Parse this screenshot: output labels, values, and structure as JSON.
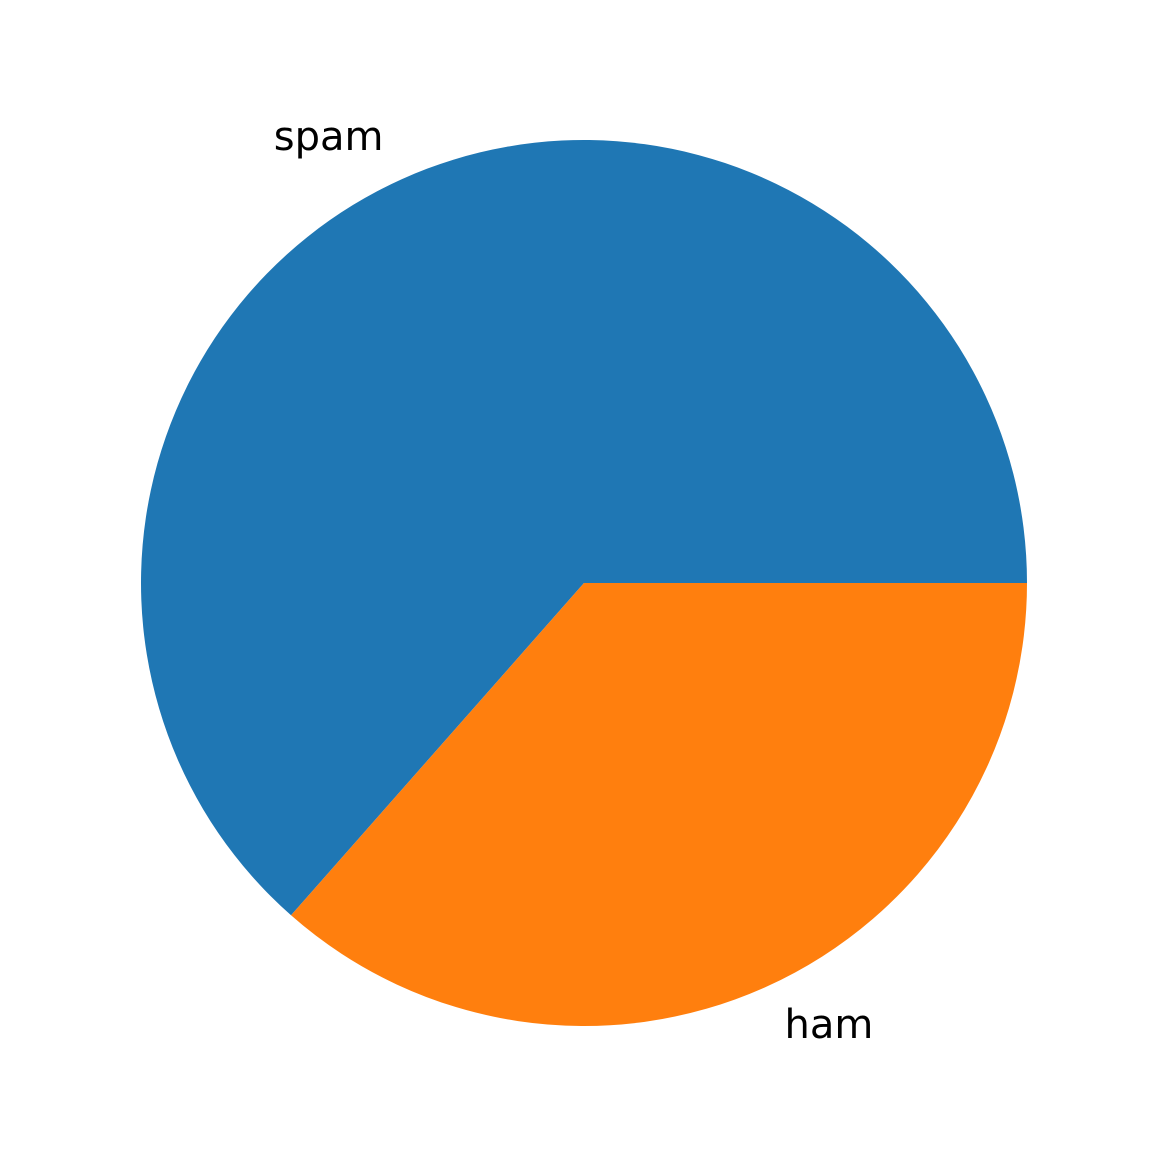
{
  "chart_data": {
    "type": "pie",
    "categories": [
      "spam",
      "ham"
    ],
    "values": [
      0.635,
      0.365
    ],
    "colors": [
      "#1f77b4",
      "#ff7f0e"
    ],
    "start_angle_deg": 0,
    "direction": "counterclockwise",
    "title": "",
    "legend": "none"
  }
}
